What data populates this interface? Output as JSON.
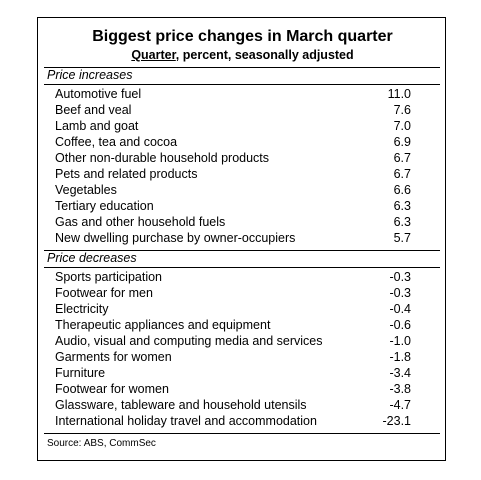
{
  "header": {
    "title": "Biggest price changes in March quarter",
    "subtitle_underlined": "Quarter",
    "subtitle_rest": ", percent, seasonally adjusted"
  },
  "sections": [
    {
      "heading": "Price increases",
      "rows": [
        [
          "Automotive fuel",
          "11.0"
        ],
        [
          "Beef and veal",
          "7.6"
        ],
        [
          "Lamb and goat",
          "7.0"
        ],
        [
          "Coffee, tea and cocoa",
          "6.9"
        ],
        [
          "Other non-durable household products",
          "6.7"
        ],
        [
          "Pets and related products",
          "6.7"
        ],
        [
          "Vegetables",
          "6.6"
        ],
        [
          "Tertiary education",
          "6.3"
        ],
        [
          "Gas and other household fuels",
          "6.3"
        ],
        [
          "New dwelling purchase by owner-occupiers",
          "5.7"
        ]
      ]
    },
    {
      "heading": "Price decreases",
      "rows": [
        [
          "Sports participation",
          "-0.3"
        ],
        [
          "Footwear for men",
          "-0.3"
        ],
        [
          "Electricity",
          "-0.4"
        ],
        [
          "Therapeutic appliances and equipment",
          "-0.6"
        ],
        [
          "Audio, visual and computing media and services",
          "-1.0"
        ],
        [
          "Garments for women",
          "-1.8"
        ],
        [
          "Furniture",
          "-3.4"
        ],
        [
          "Footwear for women",
          "-3.8"
        ],
        [
          "Glassware, tableware and household utensils",
          "-4.7"
        ],
        [
          "International holiday travel and accommodation",
          "-23.1"
        ]
      ]
    }
  ],
  "source": "Source: ABS, CommSec"
}
